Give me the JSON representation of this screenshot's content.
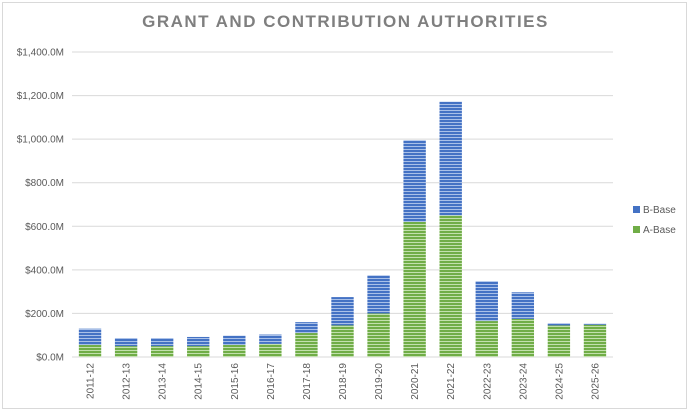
{
  "chart_data": {
    "type": "bar",
    "stacked": true,
    "title": "GRANT AND CONTRIBUTION AUTHORITIES",
    "xlabel": "",
    "ylabel": "",
    "categories": [
      "2011-12",
      "2012-13",
      "2013-14",
      "2014-15",
      "2015-16",
      "2016-17",
      "2017-18",
      "2018-19",
      "2019-20",
      "2020-21",
      "2021-22",
      "2022-23",
      "2023-24",
      "2024-25",
      "2025-26"
    ],
    "series": [
      {
        "name": "A-Base",
        "color": "#70ad47",
        "values": [
          55,
          50,
          50,
          50,
          55,
          60,
          110,
          145,
          200,
          620,
          650,
          165,
          175,
          145,
          148
        ]
      },
      {
        "name": "B-Base",
        "color": "#4472c4",
        "values": [
          75,
          37,
          37,
          42,
          43,
          43,
          50,
          130,
          175,
          375,
          522,
          183,
          122,
          10,
          5
        ]
      }
    ],
    "ylim": [
      0,
      1400
    ],
    "yticks": [
      0,
      200,
      400,
      600,
      800,
      1000,
      1200,
      1400
    ],
    "ytick_labels": [
      "$0.0M",
      "$200.0M",
      "$400.0M",
      "$600.0M",
      "$800.0M",
      "$1,000.0M",
      "$1,200.0M",
      "$1,400.0M"
    ],
    "legend": {
      "position": "right",
      "order": [
        "B-Base",
        "A-Base"
      ]
    },
    "grid": true
  }
}
